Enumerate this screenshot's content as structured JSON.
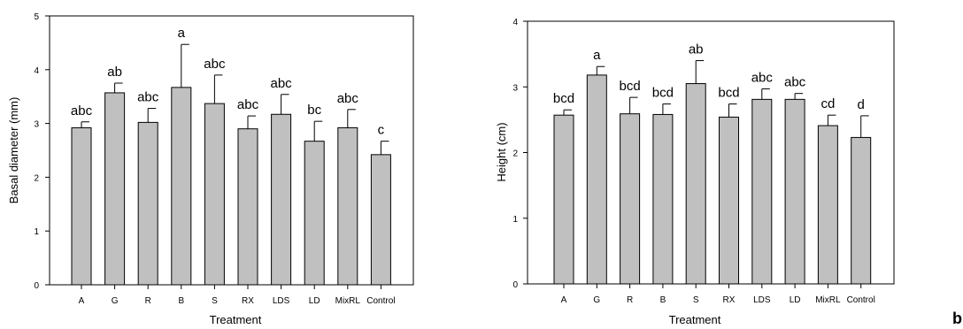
{
  "panel_label": "b",
  "chart_data": [
    {
      "type": "bar",
      "title": "",
      "xlabel": "Treatment",
      "ylabel": "Basal diameter (mm)",
      "ylim": [
        0,
        5
      ],
      "yticks": [
        "0",
        "1",
        "2",
        "3",
        "4",
        "5"
      ],
      "categories": [
        "A",
        "G",
        "R",
        "B",
        "S",
        "RX",
        "LDS",
        "LD",
        "MixRL",
        "Control"
      ],
      "values": [
        2.92,
        3.57,
        3.02,
        3.67,
        3.37,
        2.9,
        3.17,
        2.67,
        2.92,
        2.42
      ],
      "errors": [
        0.11,
        0.18,
        0.26,
        0.8,
        0.53,
        0.24,
        0.37,
        0.37,
        0.34,
        0.25
      ],
      "letters": [
        "abc",
        "ab",
        "abc",
        "a",
        "abc",
        "abc",
        "abc",
        "bc",
        "abc",
        "c"
      ],
      "bar_color": "#c0c0c0",
      "grid": false
    },
    {
      "type": "bar",
      "title": "",
      "xlabel": "Treatment",
      "ylabel": "Height (cm)",
      "ylim": [
        0,
        4
      ],
      "yticks": [
        "0",
        "1",
        "2",
        "3",
        "4"
      ],
      "categories": [
        "A",
        "G",
        "R",
        "B",
        "S",
        "RX",
        "LDS",
        "LD",
        "MixRL",
        "Control"
      ],
      "values": [
        2.57,
        3.18,
        2.59,
        2.58,
        3.05,
        2.54,
        2.81,
        2.81,
        2.41,
        2.23
      ],
      "errors": [
        0.08,
        0.13,
        0.25,
        0.16,
        0.35,
        0.2,
        0.16,
        0.09,
        0.16,
        0.33
      ],
      "letters": [
        "bcd",
        "a",
        "bcd",
        "bcd",
        "ab",
        "bcd",
        "abc",
        "abc",
        "cd",
        "d"
      ],
      "bar_color": "#c0c0c0",
      "grid": false
    }
  ]
}
